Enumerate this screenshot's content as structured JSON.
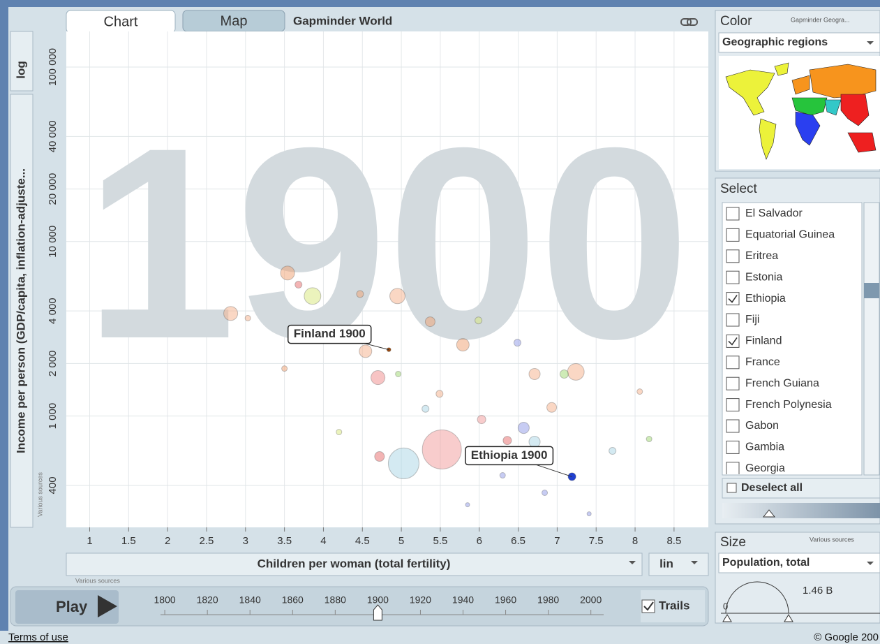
{
  "tabs": [
    "Chart",
    "Map"
  ],
  "app_title": "Gapminder World",
  "y_scale": "log",
  "x_scale": "lin",
  "chart_data": {
    "type": "scatter",
    "y_label": "Income per person (GDP/capita, inflation-adjuste...",
    "x_label": "Children per woman (total fertility)",
    "y_source": "Various sources",
    "x_source": "Various sources",
    "xlim": [
      0.7,
      8.94
    ],
    "xticks": [
      1,
      1.5,
      2,
      2.5,
      3,
      3.5,
      4,
      4.5,
      5,
      5.5,
      6,
      6.5,
      7,
      7.5,
      8,
      8.5
    ],
    "ylim": [
      230,
      160000
    ],
    "log_y": true,
    "grid": true,
    "yticks": [
      400,
      {
        "value": 1000,
        "label": "1 000"
      },
      {
        "value": 2000,
        "label": "2 000"
      },
      {
        "value": 4000,
        "label": "4 000"
      },
      {
        "value": 10000,
        "label": "10 000"
      },
      {
        "value": 20000,
        "label": "20 000"
      },
      {
        "value": 40000,
        "label": "40 000"
      },
      {
        "value": 100000,
        "label": "100 000"
      }
    ],
    "watermark": 1900,
    "x": [
      5.52,
      5.03,
      3.86,
      7.24,
      4.95,
      2.81,
      3.54,
      4.7,
      5.79,
      4.54,
      6.71,
      6.57,
      6.71,
      6.93,
      4.72,
      5.37,
      6.03,
      6.36,
      7.09,
      5.99,
      6.49,
      5.31,
      4.47,
      3.68,
      5.49,
      7.71,
      8.18,
      4.2,
      3.5,
      3.03,
      4.96,
      8.06,
      6.84,
      6.3,
      7.41,
      5.85,
      4.84,
      7.19
    ],
    "values": [
      643,
      535,
      4870,
      1790,
      4870,
      3870,
      6600,
      1660,
      2560,
      2350,
      1740,
      855,
      711,
      1120,
      586,
      3470,
      955,
      724,
      1740,
      3530,
      2630,
      1100,
      5000,
      5660,
      1340,
      631,
      738,
      809,
      1870,
      3640,
      1740,
      1380,
      363,
      457,
      275,
      310,
      2400,
      449
    ],
    "sizes": [
      280,
      173,
      51,
      51,
      43,
      36,
      36,
      36,
      29,
      29,
      23,
      23,
      23,
      17.5,
      17.5,
      17.5,
      13,
      13,
      13,
      9,
      9,
      9,
      9,
      9,
      9,
      9,
      5.7,
      5.7,
      5.7,
      5.7,
      5.7,
      5.7,
      5.7,
      5.7,
      3.2,
      3.2,
      3,
      11
    ],
    "colors": [
      "#f29a9a",
      "#a9d6e6",
      "#d8e87a",
      "#f5b08a",
      "#f5b08a",
      "#f5b08a",
      "#f0a070",
      "#f08a8a",
      "#f0a070",
      "#f5b08a",
      "#f5b08a",
      "#8f9ae8",
      "#a9d6e6",
      "#f5b08a",
      "#e86a6a",
      "#f0a070",
      "#f29a9a",
      "#e86a6a",
      "#9ed870",
      "#d8e87a",
      "#8f9ae8",
      "#a9d6e6",
      "#f0a070",
      "#e86a6a",
      "#f5b08a",
      "#a9d6e6",
      "#9ed870",
      "#d8e87a",
      "#f0a070",
      "#f5b08a",
      "#9ed870",
      "#f5b08a",
      "#8f9ae8",
      "#8f9ae8",
      "#8f9ae8",
      "#8f9ae8",
      "#9a4a10",
      "#2040d0"
    ],
    "annotations": [
      {
        "text": "Finland 1900",
        "x": 4.84,
        "y": 2400
      },
      {
        "text": "Ethiopia 1900",
        "x": 7.19,
        "y": 449
      }
    ]
  },
  "play": "Play",
  "trails": "Trails",
  "trails_checked": true,
  "timeline": {
    "ticks": [
      1800,
      1820,
      1840,
      1860,
      1880,
      1900,
      1920,
      1940,
      1960,
      1980,
      2000
    ],
    "value": 1900,
    "range": [
      1798,
      2006
    ]
  },
  "color_panel": {
    "title": "Color",
    "source": "Gapminder Geogra...",
    "indicator": "Geographic regions"
  },
  "select_panel": {
    "title": "Select",
    "items": [
      {
        "name": "El Salvador",
        "checked": false
      },
      {
        "name": "Equatorial Guinea",
        "checked": false
      },
      {
        "name": "Eritrea",
        "checked": false
      },
      {
        "name": "Estonia",
        "checked": false
      },
      {
        "name": "Ethiopia",
        "checked": true
      },
      {
        "name": "Fiji",
        "checked": false
      },
      {
        "name": "Finland",
        "checked": true
      },
      {
        "name": "France",
        "checked": false
      },
      {
        "name": "French Guiana",
        "checked": false
      },
      {
        "name": "French Polynesia",
        "checked": false
      },
      {
        "name": "Gabon",
        "checked": false
      },
      {
        "name": "Gambia",
        "checked": false
      },
      {
        "name": "Georgia",
        "checked": false
      }
    ],
    "deselect": "Deselect all"
  },
  "size_panel": {
    "title": "Size",
    "source": "Various sources",
    "indicator": "Population, total",
    "max_label": "1.46 B",
    "min_label": 0
  },
  "footer": {
    "terms": "Terms of use",
    "copyright": "© Google 200"
  }
}
